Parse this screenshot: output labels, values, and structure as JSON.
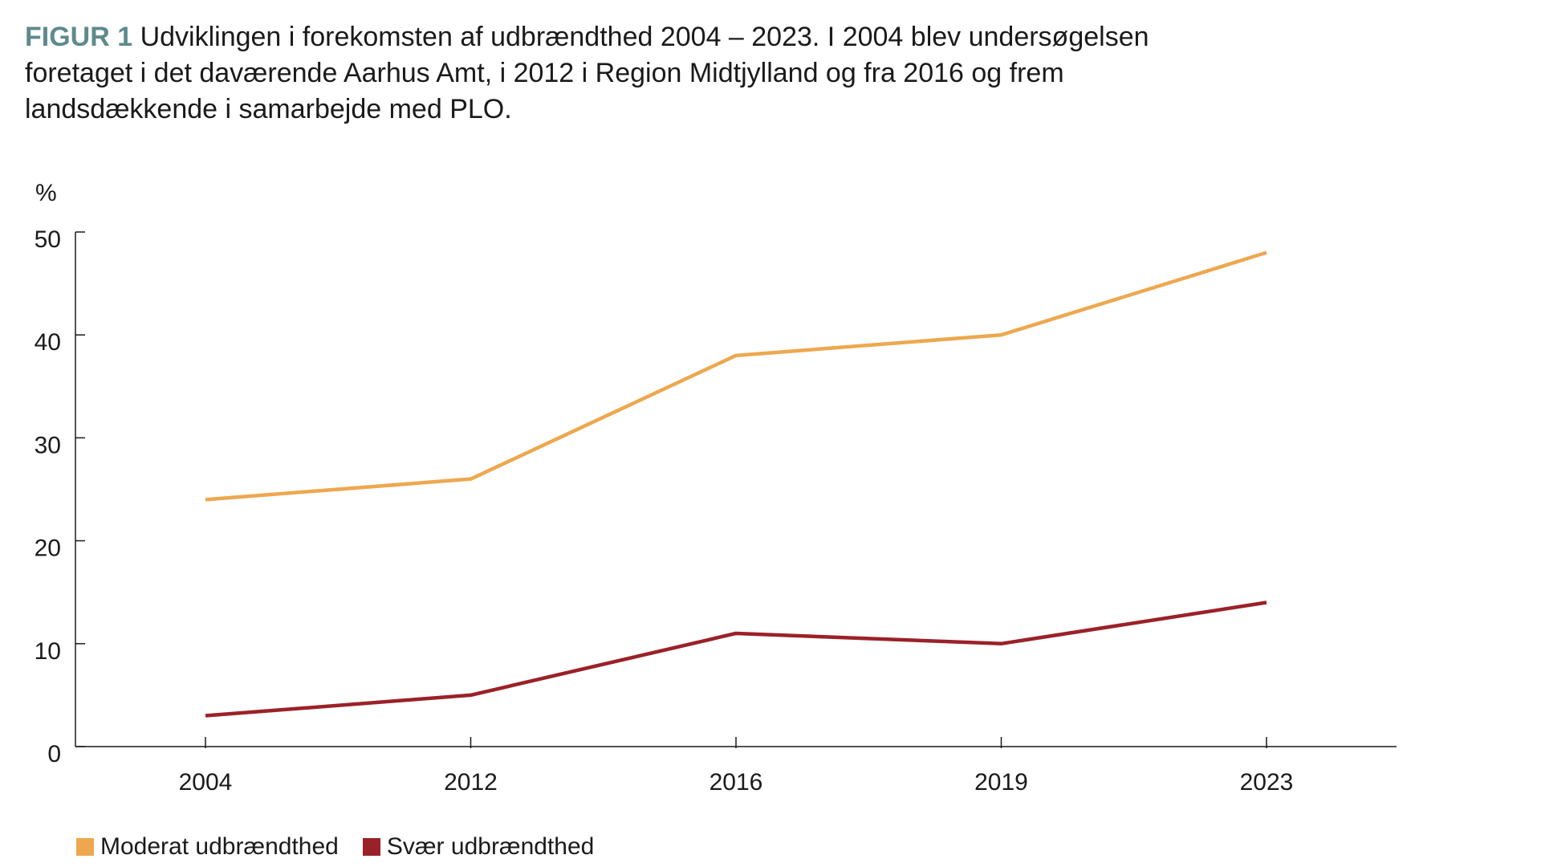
{
  "caption": {
    "label": "FIGUR 1",
    "text": "Udviklingen i forekomsten af udbrændthed 2004 – 2023. I 2004 blev undersøgelsen foretaget i det daværende Aarhus Amt, i 2012 i Region Midtjylland og fra 2016 og frem landsdækkende i samarbejde med PLO."
  },
  "chart_data": {
    "type": "line",
    "ylabel": "%",
    "xlabel": "",
    "ylim": [
      0,
      50
    ],
    "yticks": [
      0,
      10,
      20,
      30,
      40,
      50
    ],
    "categories": [
      "2004",
      "2012",
      "2016",
      "2019",
      "2023"
    ],
    "grid": false,
    "legend_position": "bottom-left",
    "series": [
      {
        "name": "Moderat udbrændthed",
        "color": "#eda84f",
        "values": [
          24,
          26,
          38,
          40,
          48
        ]
      },
      {
        "name": "Svær udbrændthed",
        "color": "#9b2128",
        "values": [
          3,
          5,
          11,
          10,
          14
        ]
      }
    ]
  }
}
